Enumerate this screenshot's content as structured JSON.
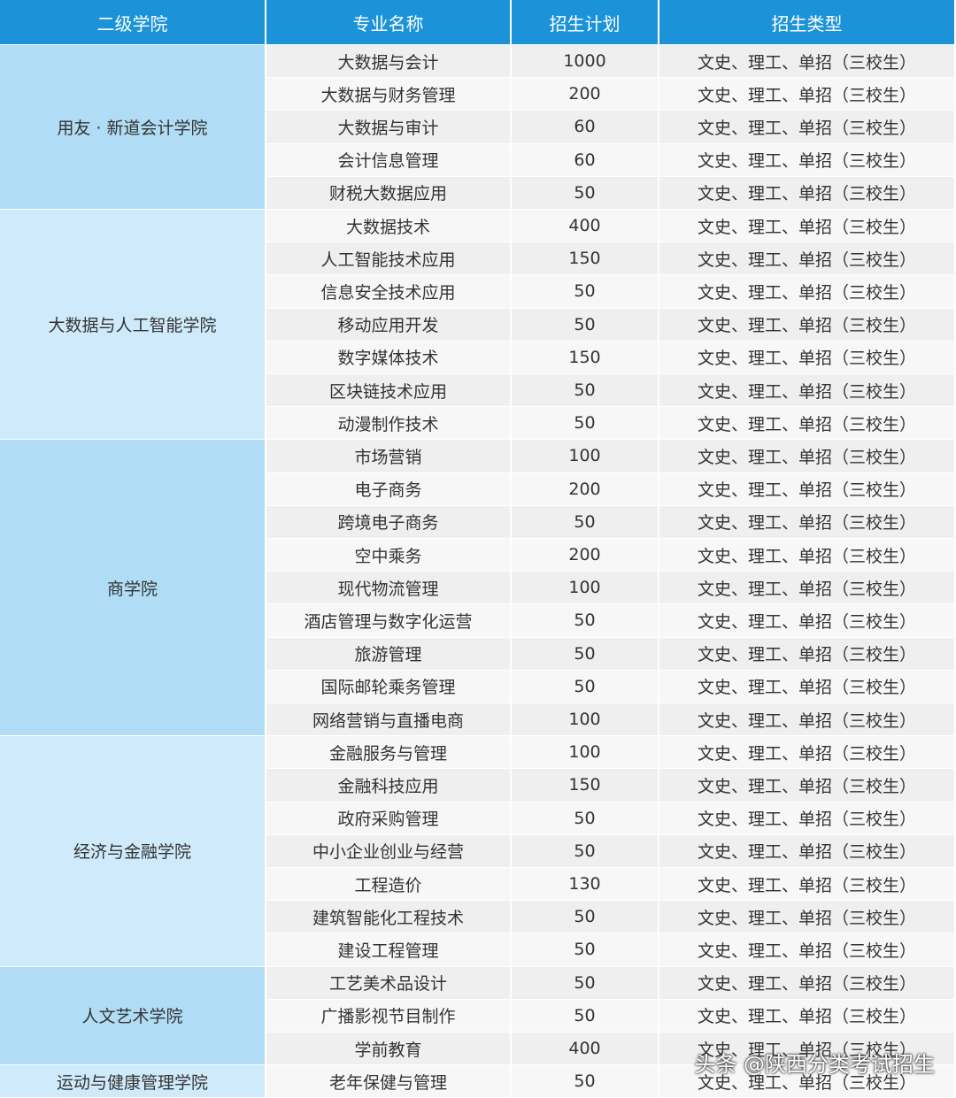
{
  "table": {
    "header": [
      "二级学院",
      "专业名称",
      "招生计划",
      "招生类型"
    ],
    "groups": [
      {
        "college": "用友 · 新道会计学院",
        "rows": [
          [
            "大数据与会计",
            "1000",
            "文史、理工、单招（三校生）"
          ],
          [
            "大数据与财务管理",
            "200",
            "文史、理工、单招（三校生）"
          ],
          [
            "大数据与审计",
            "60",
            "文史、理工、单招（三校生）"
          ],
          [
            "会计信息管理",
            "60",
            "文史、理工、单招（三校生）"
          ],
          [
            "财税大数据应用",
            "50",
            "文史、理工、单招（三校生）"
          ]
        ]
      },
      {
        "college": "大数据与人工智能学院",
        "rows": [
          [
            "大数据技术",
            "400",
            "文史、理工、单招（三校生）"
          ],
          [
            "人工智能技术应用",
            "150",
            "文史、理工、单招（三校生）"
          ],
          [
            "信息安全技术应用",
            "50",
            "文史、理工、单招（三校生）"
          ],
          [
            "移动应用开发",
            "50",
            "文史、理工、单招（三校生）"
          ],
          [
            "数字媒体技术",
            "150",
            "文史、理工、单招（三校生）"
          ],
          [
            "区块链技术应用",
            "50",
            "文史、理工、单招（三校生）"
          ],
          [
            "动漫制作技术",
            "50",
            "文史、理工、单招（三校生）"
          ]
        ]
      },
      {
        "college": "商学院",
        "rows": [
          [
            "市场营销",
            "100",
            "文史、理工、单招（三校生）"
          ],
          [
            "电子商务",
            "200",
            "文史、理工、单招（三校生）"
          ],
          [
            "跨境电子商务",
            "50",
            "文史、理工、单招（三校生）"
          ],
          [
            "空中乘务",
            "200",
            "文史、理工、单招（三校生）"
          ],
          [
            "现代物流管理",
            "100",
            "文史、理工、单招（三校生）"
          ],
          [
            "酒店管理与数字化运营",
            "50",
            "文史、理工、单招（三校生）"
          ],
          [
            "旅游管理",
            "50",
            "文史、理工、单招（三校生）"
          ],
          [
            "国际邮轮乘务管理",
            "50",
            "文史、理工、单招（三校生）"
          ],
          [
            "网络营销与直播电商",
            "100",
            "文史、理工、单招（三校生）"
          ]
        ]
      },
      {
        "college": "经济与金融学院",
        "rows": [
          [
            "金融服务与管理",
            "100",
            "文史、理工、单招（三校生）"
          ],
          [
            "金融科技应用",
            "150",
            "文史、理工、单招（三校生）"
          ],
          [
            "政府采购管理",
            "50",
            "文史、理工、单招（三校生）"
          ],
          [
            "中小企业创业与经营",
            "50",
            "文史、理工、单招（三校生）"
          ],
          [
            "工程造价",
            "130",
            "文史、理工、单招（三校生）"
          ],
          [
            "建筑智能化工程技术",
            "50",
            "文史、理工、单招（三校生）"
          ],
          [
            "建设工程管理",
            "50",
            "文史、理工、单招（三校生）"
          ]
        ]
      },
      {
        "college": "人文艺术学院",
        "rows": [
          [
            "工艺美术品设计",
            "50",
            "文史、理工、单招（三校生）"
          ],
          [
            "广播影视节目制作",
            "50",
            "文史、理工、单招（三校生）"
          ],
          [
            "学前教育",
            "400",
            "文史、理工、单招（三校生）"
          ]
        ]
      },
      {
        "college": "运动与健康管理学院",
        "rows": [
          [
            "老年保健与管理",
            "50",
            "文史、理工、单招（三校生）"
          ]
        ]
      }
    ]
  },
  "watermark": "头条 @陕西分类考试招生"
}
